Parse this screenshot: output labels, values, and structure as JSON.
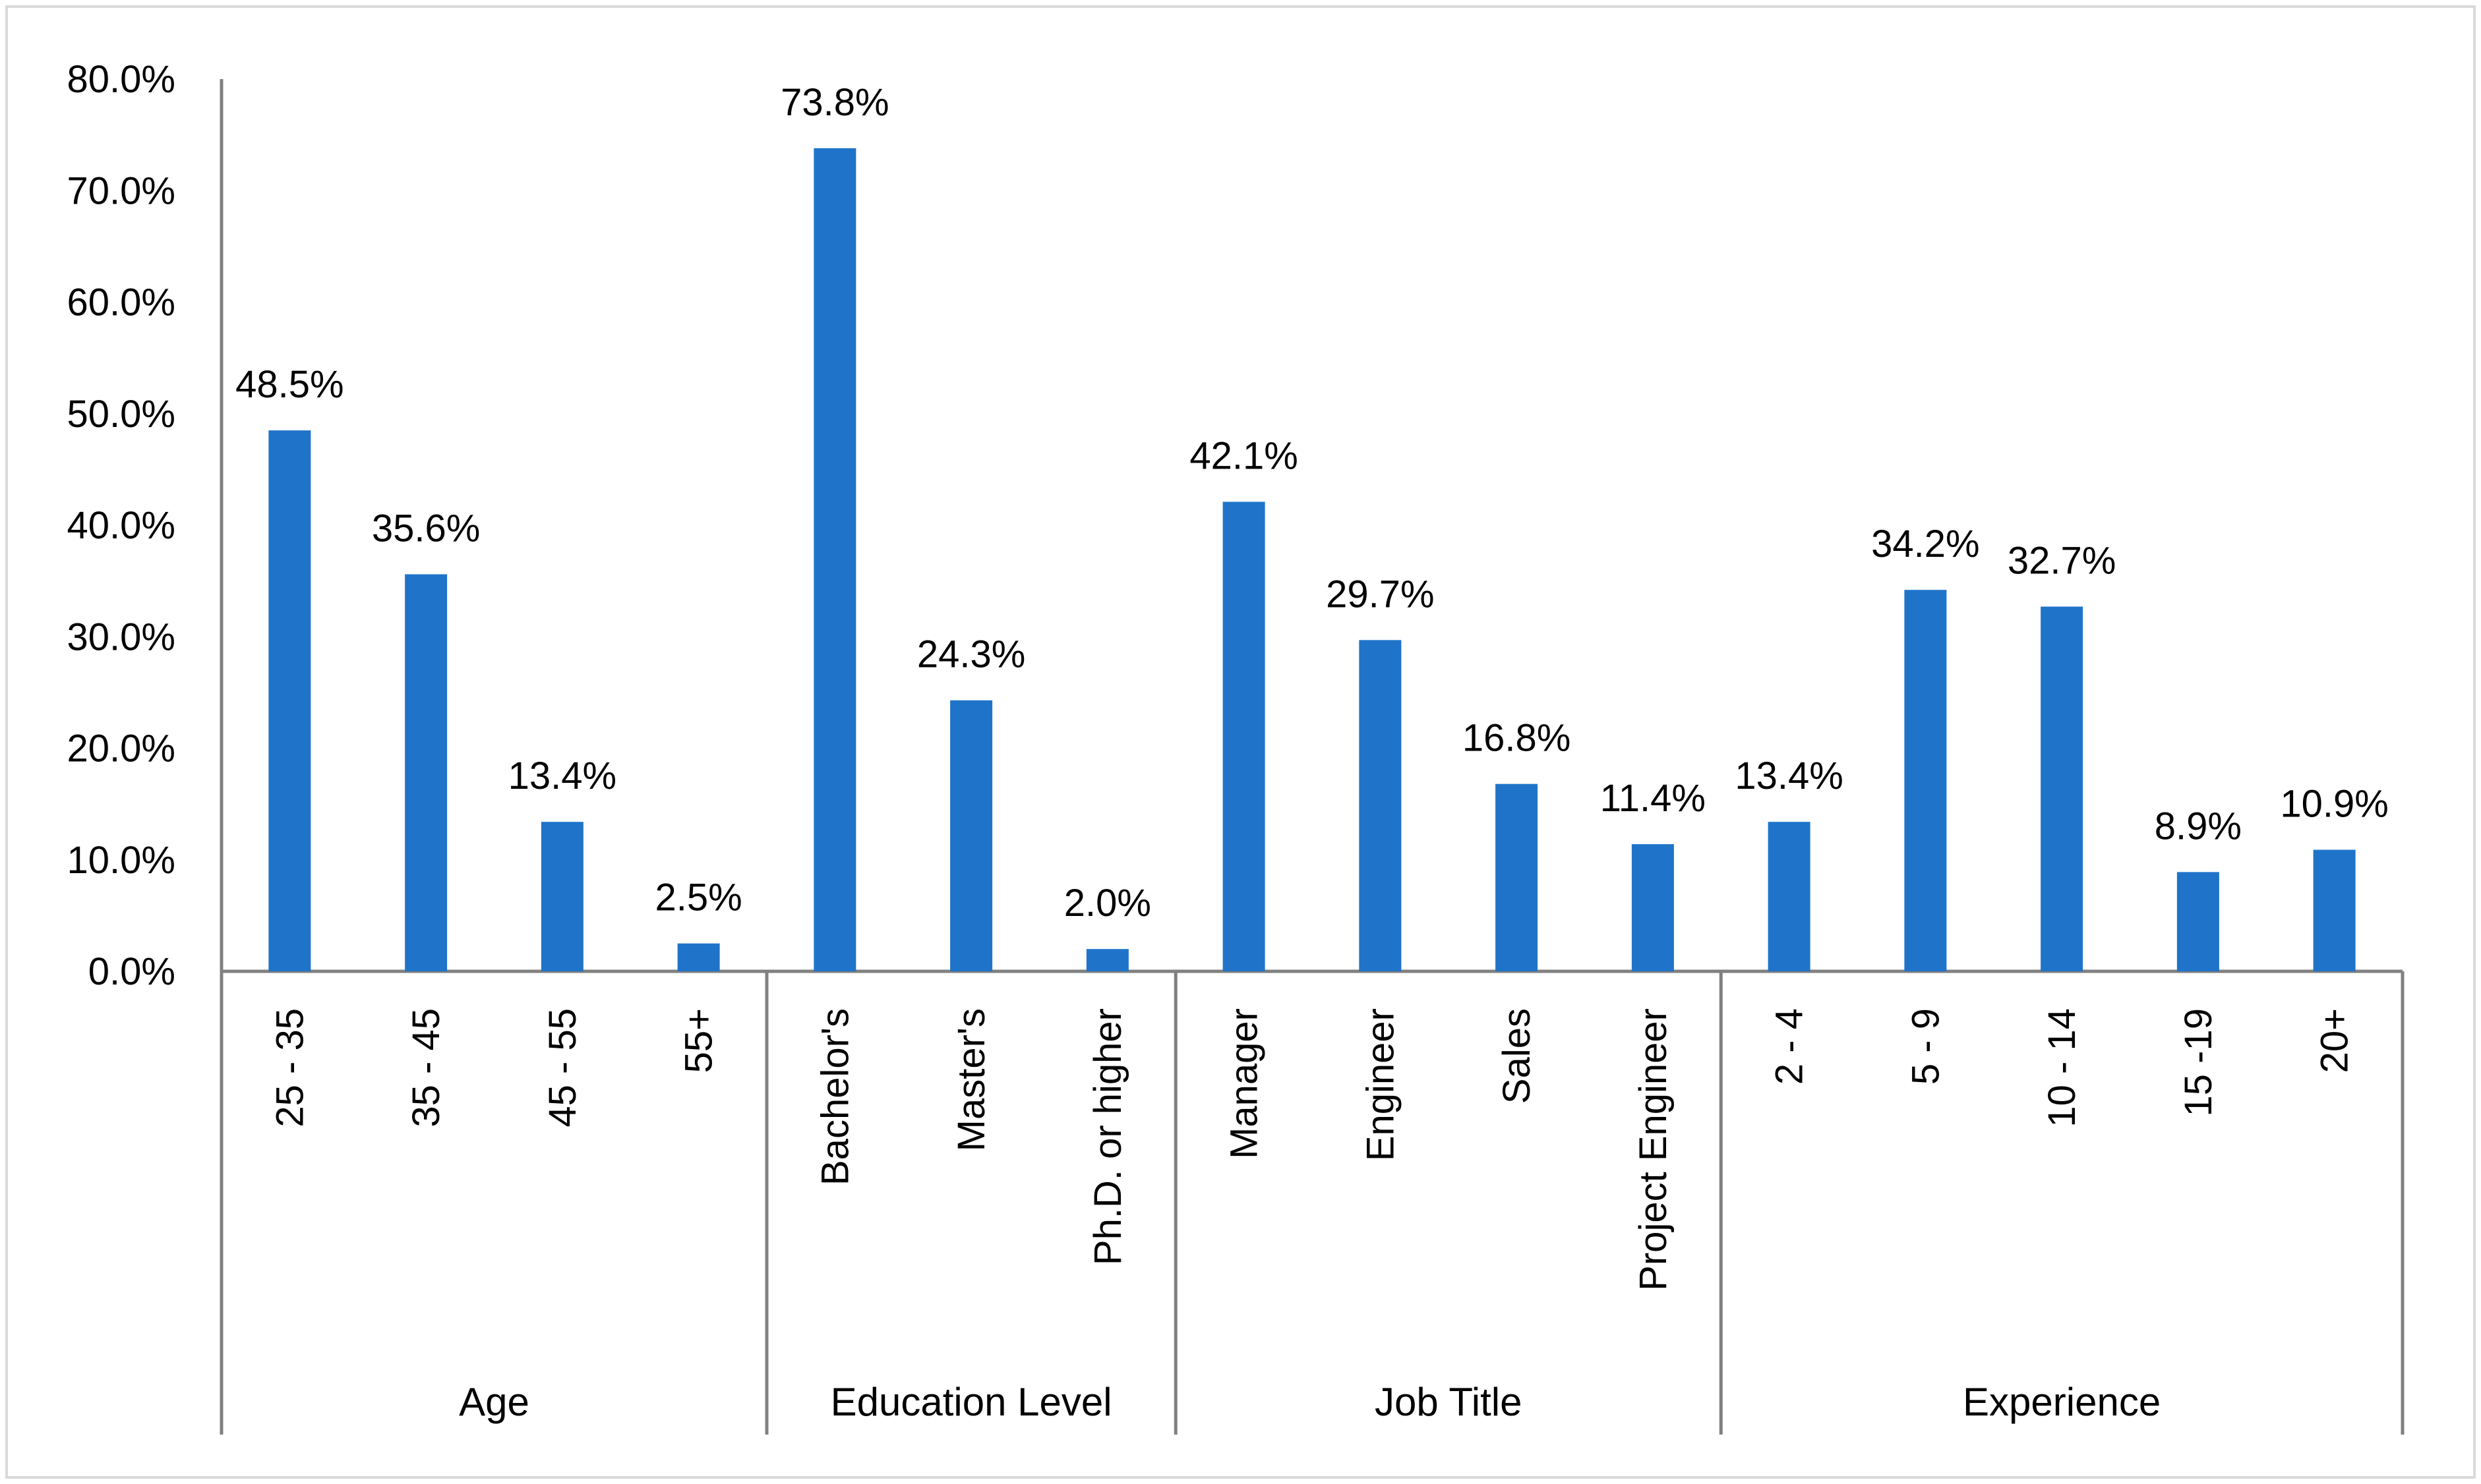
{
  "chart_data": {
    "type": "bar",
    "title": "",
    "xlabel": "",
    "ylabel": "",
    "ylim": [
      0,
      80
    ],
    "y_ticks": [
      0,
      10,
      20,
      30,
      40,
      50,
      60,
      70,
      80
    ],
    "y_tick_labels": [
      "0.0%",
      "10.0%",
      "20.0%",
      "30.0%",
      "40.0%",
      "50.0%",
      "60.0%",
      "70.0%",
      "80.0%"
    ],
    "bar_color": "#1f74c9",
    "groups": [
      {
        "name": "Age",
        "categories": [
          "25 - 35",
          "35 - 45",
          "45 - 55",
          "55+"
        ],
        "values": [
          48.5,
          35.6,
          13.4,
          2.5
        ],
        "value_labels": [
          "48.5%",
          "35.6%",
          "13.4%",
          "2.5%"
        ]
      },
      {
        "name": "Education Level",
        "categories": [
          "Bachelor's",
          "Master's",
          "Ph.D. or higher"
        ],
        "values": [
          73.8,
          24.3,
          2.0
        ],
        "value_labels": [
          "73.8%",
          "24.3%",
          "2.0%"
        ]
      },
      {
        "name": "Job Title",
        "categories": [
          "Manager",
          "Engineer",
          "Sales",
          "Project Engineer"
        ],
        "values": [
          42.1,
          29.7,
          16.8,
          11.4
        ],
        "value_labels": [
          "42.1%",
          "29.7%",
          "16.8%",
          "11.4%"
        ]
      },
      {
        "name": "Experience",
        "categories": [
          "2 - 4",
          "5 - 9",
          "10 - 14",
          "15 -19",
          "20+"
        ],
        "values": [
          13.4,
          34.2,
          32.7,
          8.9,
          10.9
        ],
        "value_labels": [
          "13.4%",
          "34.2%",
          "32.7%",
          "8.9%",
          "10.9%"
        ]
      }
    ]
  }
}
